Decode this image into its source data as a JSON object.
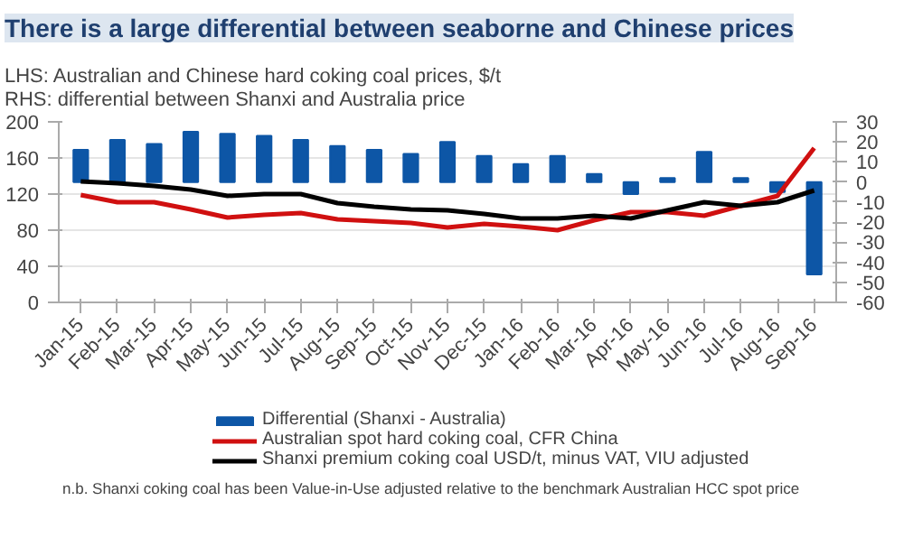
{
  "chart_data": {
    "type": "line",
    "title": "There is a large differential between seaborne and Chinese prices",
    "subtitle": "LHS: Australian and Chinese hard coking coal prices, $/t\nRHS: differential between Shanxi and Australia price",
    "categories": [
      "Jan-15",
      "Feb-15",
      "Mar-15",
      "Apr-15",
      "May-15",
      "Jun-15",
      "Jul-15",
      "Aug-15",
      "Sep-15",
      "Oct-15",
      "Nov-15",
      "Dec-15",
      "Jan-16",
      "Feb-16",
      "Mar-16",
      "Apr-16",
      "May-16",
      "Jun-16",
      "Jul-16",
      "Aug-16",
      "Sep-16"
    ],
    "series": [
      {
        "name": "Differential (Shanxi - Australia)",
        "type": "bar",
        "axis": "y2",
        "color": "#0d56a6",
        "values": [
          16,
          21,
          19,
          25,
          24,
          23,
          21,
          18,
          16,
          14,
          20,
          13,
          9,
          13,
          4,
          -6,
          2,
          15,
          2,
          -5,
          -46
        ]
      },
      {
        "name": "Australian spot hard coking coal, CFR China",
        "color": "#d01010",
        "values": [
          119,
          111,
          111,
          103,
          94,
          97,
          99,
          92,
          90,
          88,
          83,
          87,
          84,
          80,
          91,
          100,
          100,
          96,
          107,
          118,
          171
        ]
      },
      {
        "name": "Shanxi premium coking coal USD/t, minus VAT, VIU adjusted",
        "color": "#000000",
        "values": [
          134,
          132,
          129,
          125,
          118,
          120,
          120,
          110,
          106,
          103,
          102,
          98,
          93,
          93,
          96,
          93,
          102,
          111,
          107,
          111,
          124
        ]
      }
    ],
    "ylim": [
      0,
      200
    ],
    "yticks": [
      0,
      40,
      80,
      120,
      160,
      200
    ],
    "y2lim": [
      -60,
      30
    ],
    "y2ticks": [
      -60,
      -50,
      -40,
      -30,
      -20,
      -10,
      0,
      10,
      20,
      30
    ],
    "grid": "y",
    "legend": "bottom",
    "line_style": "solid",
    "marker": "none",
    "annotations": [
      "n.b. Shanxi coking coal has been Value-in-Use adjusted relative to the benchmark Australian HCC spot price"
    ]
  }
}
